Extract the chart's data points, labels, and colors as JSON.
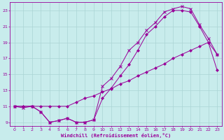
{
  "xlabel": "Windchill (Refroidissement éolien,°C)",
  "bg_color": "#c8ecec",
  "line_color": "#990099",
  "grid_color": "#aad4d4",
  "xlim": [
    -0.5,
    23.5
  ],
  "ylim": [
    8.5,
    24.0
  ],
  "xticks": [
    0,
    1,
    2,
    3,
    4,
    5,
    6,
    7,
    8,
    9,
    10,
    11,
    12,
    13,
    14,
    15,
    16,
    17,
    18,
    19,
    20,
    21,
    22,
    23
  ],
  "yticks": [
    9,
    11,
    13,
    15,
    17,
    19,
    21,
    23
  ],
  "line1_x": [
    0,
    1,
    2,
    3,
    4,
    5,
    6,
    7,
    8,
    9,
    10,
    11,
    12,
    13,
    14,
    15,
    16,
    17,
    18,
    19,
    20,
    21,
    22,
    23
  ],
  "line1_y": [
    11,
    10.8,
    11,
    10.3,
    9.0,
    9.2,
    9.5,
    9.0,
    9.0,
    9.3,
    13.5,
    14.5,
    16.0,
    18.0,
    19.0,
    20.5,
    21.5,
    22.8,
    23.2,
    23.5,
    23.2,
    21.2,
    19.5,
    17.5
  ],
  "line2_x": [
    0,
    1,
    2,
    3,
    4,
    5,
    6,
    7,
    8,
    9,
    10,
    11,
    12,
    13,
    14,
    15,
    16,
    17,
    18,
    19,
    20,
    21,
    22,
    23
  ],
  "line2_y": [
    11,
    11,
    11,
    10.3,
    9.0,
    9.2,
    9.5,
    9.0,
    9.0,
    9.3,
    12.0,
    13.3,
    14.8,
    16.2,
    18.0,
    20.0,
    21.0,
    22.2,
    23.0,
    23.0,
    22.8,
    21.0,
    19.0,
    17.5
  ],
  "line3_x": [
    0,
    1,
    2,
    3,
    4,
    5,
    6,
    7,
    8,
    9,
    10,
    11,
    12,
    13,
    14,
    15,
    16,
    17,
    18,
    19,
    20,
    21,
    22,
    23
  ],
  "line3_y": [
    11,
    11,
    11,
    11,
    11,
    11,
    11,
    11.5,
    12.0,
    12.3,
    12.8,
    13.2,
    13.8,
    14.2,
    14.8,
    15.3,
    15.8,
    16.3,
    17.0,
    17.5,
    18.0,
    18.5,
    19.0,
    15.5
  ]
}
